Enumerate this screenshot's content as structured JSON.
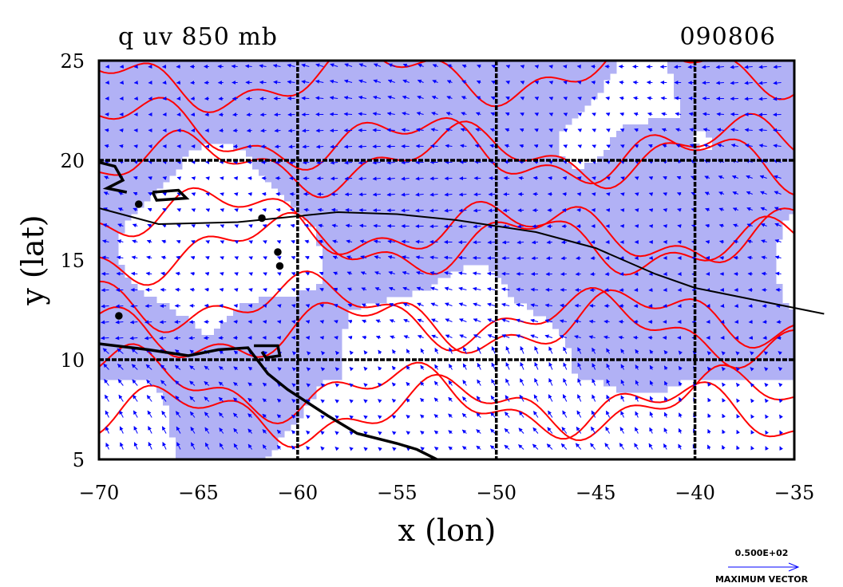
{
  "chart_data": {
    "type": "contour",
    "title_left": "q uv 850 mb",
    "title_right": "090806",
    "xlabel": "x (lon)",
    "ylabel": "y (lat)",
    "xlim": [
      -70,
      -35
    ],
    "ylim": [
      5,
      25
    ],
    "xticks": [
      {
        "value": -70,
        "label": "−70"
      },
      {
        "value": -65,
        "label": "−65"
      },
      {
        "value": -60,
        "label": "−60"
      },
      {
        "value": -55,
        "label": "−55"
      },
      {
        "value": -50,
        "label": "−50"
      },
      {
        "value": -45,
        "label": "−45"
      },
      {
        "value": -40,
        "label": "−40"
      },
      {
        "value": -35,
        "label": "−35"
      }
    ],
    "yticks": [
      {
        "value": 5,
        "label": "5"
      },
      {
        "value": 10,
        "label": "10"
      },
      {
        "value": 15,
        "label": "15"
      },
      {
        "value": 20,
        "label": "20"
      },
      {
        "value": 25,
        "label": "25"
      }
    ],
    "gridlines_lon": [
      -60,
      -50,
      -40
    ],
    "gridlines_lat": [
      10,
      20
    ],
    "shading_color": "#b1b1f5",
    "contour_color": "#ff0000",
    "vector_color": "#0000ff",
    "track": [
      [
        -70,
        17.6
      ],
      [
        -67,
        16.8
      ],
      [
        -63,
        16.9
      ],
      [
        -58,
        17.4
      ],
      [
        -55,
        17.3
      ],
      [
        -52,
        17.0
      ],
      [
        -48,
        16.4
      ],
      [
        -45,
        15.6
      ],
      [
        -42,
        14.3
      ],
      [
        -40,
        13.6
      ],
      [
        -37,
        13.0
      ],
      [
        -33.5,
        12.3
      ]
    ],
    "coastlines": [
      [
        [
          -70,
          10.8
        ],
        [
          -67.5,
          10.5
        ],
        [
          -65.5,
          10.2
        ],
        [
          -64,
          10.5
        ],
        [
          -62.5,
          10.6
        ],
        [
          -61.5,
          9.3
        ],
        [
          -60.5,
          8.5
        ],
        [
          -58.5,
          7.2
        ],
        [
          -57,
          6.3
        ],
        [
          -55,
          5.8
        ],
        [
          -54,
          5.5
        ],
        [
          -53,
          5.0
        ]
      ],
      [
        [
          -70,
          19.9
        ],
        [
          -69.2,
          19.7
        ],
        [
          -68.8,
          19.0
        ],
        [
          -69.6,
          18.6
        ],
        [
          -68.6,
          18.4
        ]
      ],
      [
        [
          -67.3,
          18.4
        ],
        [
          -66,
          18.5
        ],
        [
          -65.6,
          18.1
        ],
        [
          -67.1,
          18.0
        ],
        [
          -67.3,
          18.4
        ]
      ],
      [
        [
          -62.2,
          10.7
        ],
        [
          -61.0,
          10.7
        ],
        [
          -60.9,
          10.2
        ],
        [
          -61.6,
          10.1
        ],
        [
          -61.8,
          10.4
        ]
      ]
    ],
    "islands": [
      [
        -61.8,
        17.1
      ],
      [
        -61.0,
        15.4
      ],
      [
        -60.9,
        14.7
      ],
      [
        -69,
        12.2
      ],
      [
        -68,
        17.8
      ]
    ],
    "reference_vector": {
      "value": "0.500E+02",
      "label": "MAXIMUM VECTOR"
    }
  }
}
